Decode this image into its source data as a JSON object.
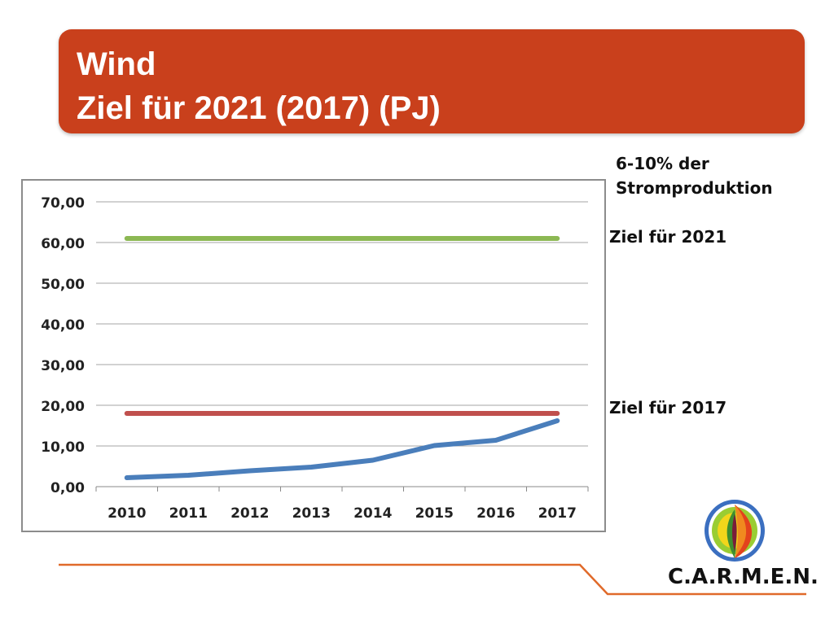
{
  "title": {
    "line1": "Wind",
    "line2": "Ziel für 2021 (2017) (PJ)"
  },
  "side_labels": {
    "note_line1": "6-10% der",
    "note_line2": "Stromproduktion",
    "target_2021": "Ziel für 2021",
    "target_2017": "Ziel für 2017"
  },
  "brand": "C.A.R.M.E.N.",
  "colors": {
    "title_bg": "#c9401c",
    "actual_line": "#4a7ebb",
    "target_2021_line": "#8cb853",
    "target_2017_line": "#c0504d",
    "footer_line": "#e06a2a"
  },
  "chart_data": {
    "type": "line",
    "categories": [
      "2010",
      "2011",
      "2012",
      "2013",
      "2014",
      "2015",
      "2016",
      "2017"
    ],
    "series": [
      {
        "values": [
          2.2,
          2.8,
          3.9,
          4.8,
          6.5,
          10.1,
          11.4,
          16.2
        ]
      },
      {
        "values": [
          61,
          61,
          61,
          61,
          61,
          61,
          61,
          61
        ]
      },
      {
        "values": [
          18,
          18,
          18,
          18,
          18,
          18,
          18,
          18
        ]
      }
    ],
    "ylim": [
      0,
      70
    ],
    "yticks": [
      "0,00",
      "10,00",
      "20,00",
      "30,00",
      "40,00",
      "50,00",
      "60,00",
      "70,00"
    ],
    "grid": true,
    "title": "",
    "xlabel": "",
    "ylabel": ""
  }
}
